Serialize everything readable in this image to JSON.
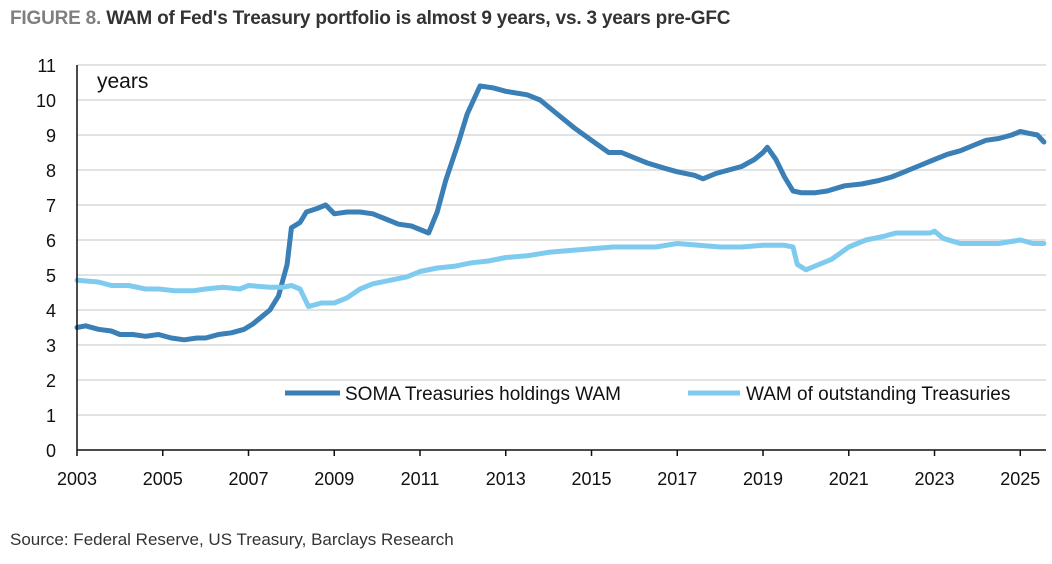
{
  "title": {
    "figure_label": "FIGURE 8.",
    "text": "WAM of Fed's Treasury portfolio is almost 9 years, vs. 3 years pre-GFC"
  },
  "source": "Source: Federal Reserve, US Treasury, Barclays Research",
  "chart_data": {
    "type": "line",
    "ylabel": "years",
    "xlim": [
      2003,
      2025.6
    ],
    "ylim": [
      0,
      11
    ],
    "x_ticks": [
      2003,
      2005,
      2007,
      2009,
      2011,
      2013,
      2015,
      2017,
      2019,
      2021,
      2023,
      2025
    ],
    "y_ticks": [
      0,
      1,
      2,
      3,
      4,
      5,
      6,
      7,
      8,
      9,
      10,
      11
    ],
    "grid": true,
    "legend_position": "bottom-inside",
    "series": [
      {
        "name": "SOMA Treasuries holdings WAM",
        "color": "#3a7fb5",
        "points": [
          [
            2003.0,
            3.5
          ],
          [
            2003.2,
            3.55
          ],
          [
            2003.5,
            3.45
          ],
          [
            2003.8,
            3.4
          ],
          [
            2004.0,
            3.3
          ],
          [
            2004.3,
            3.3
          ],
          [
            2004.6,
            3.25
          ],
          [
            2004.9,
            3.3
          ],
          [
            2005.2,
            3.2
          ],
          [
            2005.5,
            3.15
          ],
          [
            2005.8,
            3.2
          ],
          [
            2006.0,
            3.2
          ],
          [
            2006.3,
            3.3
          ],
          [
            2006.6,
            3.35
          ],
          [
            2006.9,
            3.45
          ],
          [
            2007.1,
            3.6
          ],
          [
            2007.3,
            3.8
          ],
          [
            2007.5,
            4.0
          ],
          [
            2007.7,
            4.4
          ],
          [
            2007.9,
            5.3
          ],
          [
            2008.0,
            6.35
          ],
          [
            2008.2,
            6.5
          ],
          [
            2008.35,
            6.8
          ],
          [
            2008.6,
            6.9
          ],
          [
            2008.8,
            7.0
          ],
          [
            2009.0,
            6.75
          ],
          [
            2009.3,
            6.8
          ],
          [
            2009.6,
            6.8
          ],
          [
            2009.9,
            6.75
          ],
          [
            2010.2,
            6.6
          ],
          [
            2010.5,
            6.45
          ],
          [
            2010.8,
            6.4
          ],
          [
            2011.0,
            6.3
          ],
          [
            2011.2,
            6.2
          ],
          [
            2011.4,
            6.8
          ],
          [
            2011.6,
            7.7
          ],
          [
            2011.9,
            8.8
          ],
          [
            2012.1,
            9.6
          ],
          [
            2012.4,
            10.4
          ],
          [
            2012.7,
            10.35
          ],
          [
            2013.0,
            10.25
          ],
          [
            2013.5,
            10.15
          ],
          [
            2013.8,
            10.0
          ],
          [
            2014.2,
            9.6
          ],
          [
            2014.6,
            9.2
          ],
          [
            2015.0,
            8.85
          ],
          [
            2015.4,
            8.5
          ],
          [
            2015.7,
            8.5
          ],
          [
            2016.0,
            8.35
          ],
          [
            2016.3,
            8.2
          ],
          [
            2016.7,
            8.05
          ],
          [
            2017.0,
            7.95
          ],
          [
            2017.4,
            7.85
          ],
          [
            2017.6,
            7.75
          ],
          [
            2017.9,
            7.9
          ],
          [
            2018.2,
            8.0
          ],
          [
            2018.5,
            8.1
          ],
          [
            2018.8,
            8.3
          ],
          [
            2019.0,
            8.5
          ],
          [
            2019.1,
            8.65
          ],
          [
            2019.3,
            8.3
          ],
          [
            2019.5,
            7.8
          ],
          [
            2019.7,
            7.4
          ],
          [
            2019.9,
            7.35
          ],
          [
            2020.2,
            7.35
          ],
          [
            2020.5,
            7.4
          ],
          [
            2020.9,
            7.55
          ],
          [
            2021.3,
            7.6
          ],
          [
            2021.7,
            7.7
          ],
          [
            2022.0,
            7.8
          ],
          [
            2022.3,
            7.95
          ],
          [
            2022.6,
            8.1
          ],
          [
            2023.0,
            8.3
          ],
          [
            2023.3,
            8.45
          ],
          [
            2023.6,
            8.55
          ],
          [
            2023.9,
            8.7
          ],
          [
            2024.2,
            8.85
          ],
          [
            2024.5,
            8.9
          ],
          [
            2024.8,
            9.0
          ],
          [
            2025.0,
            9.1
          ],
          [
            2025.2,
            9.05
          ],
          [
            2025.4,
            9.0
          ],
          [
            2025.55,
            8.8
          ]
        ]
      },
      {
        "name": "WAM of outstanding Treasuries",
        "color": "#7fcbef",
        "points": [
          [
            2003.0,
            4.85
          ],
          [
            2003.5,
            4.8
          ],
          [
            2003.8,
            4.7
          ],
          [
            2004.2,
            4.7
          ],
          [
            2004.6,
            4.6
          ],
          [
            2004.9,
            4.6
          ],
          [
            2005.3,
            4.55
          ],
          [
            2005.7,
            4.55
          ],
          [
            2006.0,
            4.6
          ],
          [
            2006.4,
            4.65
          ],
          [
            2006.8,
            4.6
          ],
          [
            2007.0,
            4.7
          ],
          [
            2007.5,
            4.65
          ],
          [
            2007.8,
            4.65
          ],
          [
            2008.0,
            4.7
          ],
          [
            2008.2,
            4.6
          ],
          [
            2008.4,
            4.1
          ],
          [
            2008.7,
            4.2
          ],
          [
            2009.0,
            4.2
          ],
          [
            2009.3,
            4.35
          ],
          [
            2009.6,
            4.6
          ],
          [
            2009.9,
            4.75
          ],
          [
            2010.3,
            4.85
          ],
          [
            2010.7,
            4.95
          ],
          [
            2011.0,
            5.1
          ],
          [
            2011.4,
            5.2
          ],
          [
            2011.8,
            5.25
          ],
          [
            2012.2,
            5.35
          ],
          [
            2012.6,
            5.4
          ],
          [
            2013.0,
            5.5
          ],
          [
            2013.5,
            5.55
          ],
          [
            2014.0,
            5.65
          ],
          [
            2014.5,
            5.7
          ],
          [
            2015.0,
            5.75
          ],
          [
            2015.5,
            5.8
          ],
          [
            2016.0,
            5.8
          ],
          [
            2016.5,
            5.8
          ],
          [
            2017.0,
            5.9
          ],
          [
            2017.5,
            5.85
          ],
          [
            2018.0,
            5.8
          ],
          [
            2018.5,
            5.8
          ],
          [
            2019.0,
            5.85
          ],
          [
            2019.5,
            5.85
          ],
          [
            2019.7,
            5.8
          ],
          [
            2019.8,
            5.3
          ],
          [
            2020.0,
            5.15
          ],
          [
            2020.3,
            5.3
          ],
          [
            2020.6,
            5.45
          ],
          [
            2021.0,
            5.8
          ],
          [
            2021.4,
            6.0
          ],
          [
            2021.8,
            6.1
          ],
          [
            2022.1,
            6.2
          ],
          [
            2022.5,
            6.2
          ],
          [
            2022.9,
            6.2
          ],
          [
            2023.0,
            6.25
          ],
          [
            2023.2,
            6.05
          ],
          [
            2023.6,
            5.9
          ],
          [
            2024.0,
            5.9
          ],
          [
            2024.5,
            5.9
          ],
          [
            2025.0,
            6.0
          ],
          [
            2025.3,
            5.9
          ],
          [
            2025.55,
            5.9
          ]
        ]
      }
    ]
  }
}
